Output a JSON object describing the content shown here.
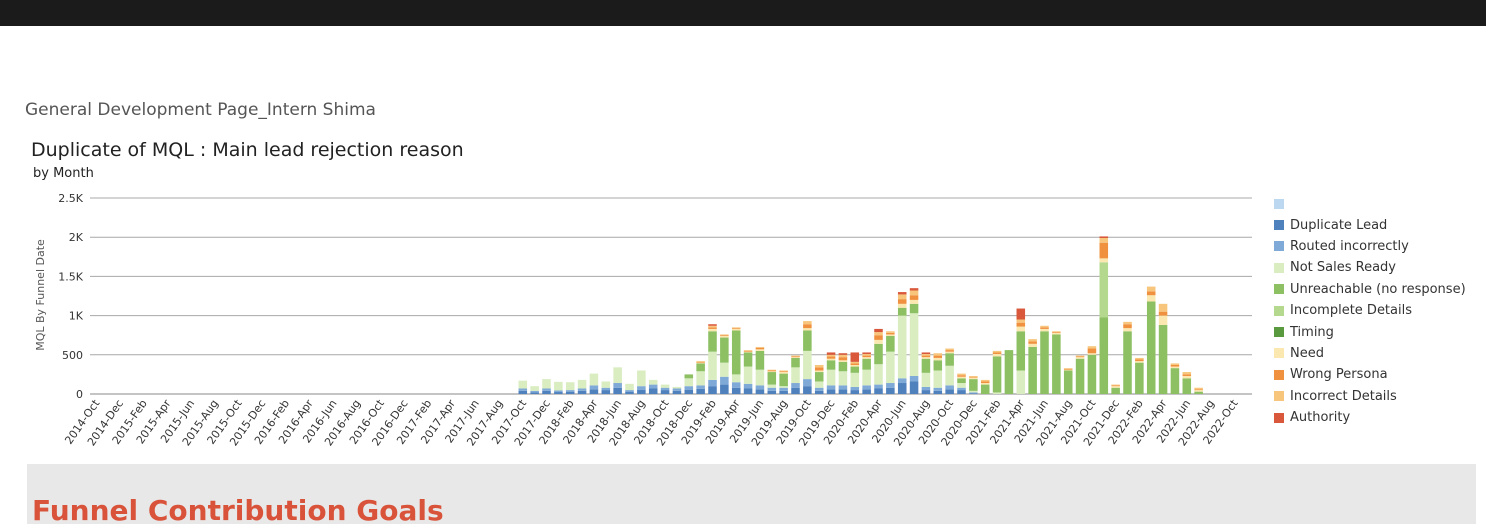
{
  "page": {
    "title": "General Development Page_Intern Shima"
  },
  "bottom": {
    "heading": "Funnel Contribution Goals"
  },
  "chart_data": {
    "type": "bar",
    "stacked": true,
    "title": "Duplicate of MQL : Main lead rejection reason",
    "subtitle": "by Month",
    "ylabel": "MQL By Funnel Date",
    "xlabel": "",
    "ylim": [
      0,
      2500
    ],
    "yticks": [
      0,
      500,
      1000,
      1500,
      2000,
      2500
    ],
    "ytick_labels": [
      "0",
      "500",
      "1K",
      "1.5K",
      "2K",
      "2.5K"
    ],
    "grid": true,
    "legend_position": "right",
    "x_start": "2014-Oct",
    "xtick_labels": [
      "2014-Oct",
      "2014-Dec",
      "2015-Feb",
      "2015-Apr",
      "2015-Jun",
      "2015-Aug",
      "2015-Oct",
      "2015-Dec",
      "2016-Feb",
      "2016-Apr",
      "2016-Jun",
      "2016-Aug",
      "2016-Oct",
      "2016-Dec",
      "2017-Feb",
      "2017-Apr",
      "2017-Jun",
      "2017-Aug",
      "2017-Oct",
      "2017-Dec",
      "2018-Feb",
      "2018-Apr",
      "2018-Jun",
      "2018-Aug",
      "2018-Oct",
      "2018-Dec",
      "2019-Feb",
      "2019-Apr",
      "2019-Jun",
      "2019-Aug",
      "2019-Oct",
      "2019-Dec",
      "2020-Feb",
      "2020-Apr",
      "2020-Jun",
      "2020-Aug",
      "2020-Oct",
      "2020-Dec",
      "2021-Feb",
      "2021-Apr",
      "2021-Jun",
      "2021-Aug",
      "2021-Oct",
      "2021-Dec",
      "2022-Feb",
      "2022-Apr",
      "2022-Jun",
      "2022-Aug",
      "2022-Oct"
    ],
    "categories": [
      "2014-Oct",
      "2014-Nov",
      "2014-Dec",
      "2015-Jan",
      "2015-Feb",
      "2015-Mar",
      "2015-Apr",
      "2015-May",
      "2015-Jun",
      "2015-Jul",
      "2015-Aug",
      "2015-Sep",
      "2015-Oct",
      "2015-Nov",
      "2015-Dec",
      "2016-Jan",
      "2016-Feb",
      "2016-Mar",
      "2016-Apr",
      "2016-May",
      "2016-Jun",
      "2016-Jul",
      "2016-Aug",
      "2016-Sep",
      "2016-Oct",
      "2016-Nov",
      "2016-Dec",
      "2017-Jan",
      "2017-Feb",
      "2017-Mar",
      "2017-Apr",
      "2017-May",
      "2017-Jun",
      "2017-Jul",
      "2017-Aug",
      "2017-Sep",
      "2017-Oct",
      "2017-Nov",
      "2017-Dec",
      "2018-Jan",
      "2018-Feb",
      "2018-Mar",
      "2018-Apr",
      "2018-May",
      "2018-Jun",
      "2018-Jul",
      "2018-Aug",
      "2018-Sep",
      "2018-Oct",
      "2018-Nov",
      "2018-Dec",
      "2019-Jan",
      "2019-Feb",
      "2019-Mar",
      "2019-Apr",
      "2019-May",
      "2019-Jun",
      "2019-Jul",
      "2019-Aug",
      "2019-Sep",
      "2019-Oct",
      "2019-Nov",
      "2019-Dec",
      "2020-Jan",
      "2020-Feb",
      "2020-Mar",
      "2020-Apr",
      "2020-May",
      "2020-Jun",
      "2020-Jul",
      "2020-Aug",
      "2020-Sep",
      "2020-Oct",
      "2020-Nov",
      "2020-Dec",
      "2021-Jan",
      "2021-Feb",
      "2021-Mar",
      "2021-Apr",
      "2021-May",
      "2021-Jun",
      "2021-Jul",
      "2021-Aug",
      "2021-Sep",
      "2021-Oct",
      "2021-Nov",
      "2021-Dec",
      "2022-Jan",
      "2022-Feb",
      "2022-Mar",
      "2022-Apr",
      "2022-May",
      "2022-Jun",
      "2022-Jul",
      "2022-Aug",
      "2022-Sep",
      "2022-Oct",
      "2022-Nov"
    ],
    "series": [
      {
        "name": "",
        "color": "#bcd8f0",
        "values": [
          0,
          0,
          0,
          0,
          0,
          0,
          0,
          0,
          0,
          0,
          0,
          0,
          0,
          0,
          0,
          0,
          0,
          0,
          0,
          0,
          0,
          0,
          0,
          0,
          0,
          0,
          0,
          0,
          0,
          0,
          0,
          0,
          0,
          0,
          0,
          0,
          0,
          0,
          0,
          0,
          0,
          0,
          0,
          0,
          0,
          0,
          0,
          0,
          0,
          0,
          0,
          0,
          0,
          0,
          0,
          0,
          0,
          0,
          0,
          0,
          0,
          0,
          0,
          0,
          0,
          0,
          0,
          0,
          0,
          0,
          0,
          0,
          0,
          0,
          0,
          0,
          0,
          0,
          0,
          0,
          0,
          0,
          0,
          0,
          0,
          0,
          0,
          0,
          0,
          0,
          0,
          0,
          0,
          0,
          0,
          0,
          0,
          0
        ]
      },
      {
        "name": "Duplicate Lead",
        "color": "#4f81bd",
        "values": [
          0,
          0,
          0,
          0,
          0,
          0,
          0,
          0,
          0,
          0,
          0,
          0,
          0,
          0,
          0,
          0,
          0,
          0,
          0,
          0,
          0,
          0,
          0,
          0,
          0,
          0,
          0,
          0,
          0,
          0,
          0,
          0,
          0,
          0,
          0,
          0,
          40,
          20,
          40,
          25,
          30,
          40,
          60,
          50,
          80,
          30,
          55,
          70,
          50,
          40,
          55,
          65,
          100,
          120,
          80,
          70,
          60,
          40,
          40,
          80,
          100,
          40,
          60,
          60,
          50,
          60,
          70,
          80,
          140,
          160,
          50,
          40,
          60,
          50,
          10,
          0,
          0,
          0,
          0,
          0,
          0,
          0,
          0,
          0,
          0,
          0,
          0,
          0,
          0,
          0,
          0,
          0,
          0,
          0,
          0,
          0,
          0,
          0
        ]
      },
      {
        "name": "Routed incorrectly",
        "color": "#7fa9d6",
        "values": [
          0,
          0,
          0,
          0,
          0,
          0,
          0,
          0,
          0,
          0,
          0,
          0,
          0,
          0,
          0,
          0,
          0,
          0,
          0,
          0,
          0,
          0,
          0,
          0,
          0,
          0,
          0,
          0,
          0,
          0,
          0,
          0,
          0,
          0,
          0,
          0,
          30,
          20,
          30,
          20,
          20,
          30,
          50,
          30,
          60,
          20,
          45,
          50,
          30,
          30,
          45,
          45,
          80,
          100,
          70,
          60,
          50,
          40,
          40,
          60,
          90,
          40,
          50,
          50,
          40,
          50,
          50,
          60,
          60,
          70,
          40,
          40,
          50,
          30,
          10,
          0,
          0,
          0,
          0,
          0,
          0,
          0,
          0,
          0,
          0,
          0,
          0,
          0,
          0,
          0,
          0,
          0,
          0,
          0,
          0,
          0,
          0,
          0
        ]
      },
      {
        "name": "Not Sales Ready",
        "color": "#d9edc0",
        "values": [
          0,
          0,
          0,
          0,
          0,
          0,
          0,
          0,
          0,
          0,
          0,
          0,
          0,
          0,
          0,
          0,
          0,
          0,
          0,
          0,
          0,
          0,
          0,
          0,
          0,
          0,
          0,
          0,
          0,
          0,
          0,
          0,
          0,
          0,
          0,
          0,
          100,
          60,
          120,
          110,
          100,
          110,
          150,
          80,
          200,
          80,
          200,
          60,
          40,
          20,
          100,
          180,
          360,
          180,
          100,
          220,
          200,
          40,
          20,
          200,
          360,
          80,
          200,
          180,
          180,
          200,
          260,
          400,
          800,
          800,
          180,
          220,
          250,
          60,
          20,
          0,
          20,
          0,
          300,
          0,
          0,
          0,
          0,
          0,
          0,
          0,
          0,
          0,
          0,
          0,
          0,
          0,
          0,
          0,
          0,
          0,
          0,
          0
        ]
      },
      {
        "name": "Unreachable (no response)",
        "color": "#8cc063",
        "values": [
          0,
          0,
          0,
          0,
          0,
          0,
          0,
          0,
          0,
          0,
          0,
          0,
          0,
          0,
          0,
          0,
          0,
          0,
          0,
          0,
          0,
          0,
          0,
          0,
          0,
          0,
          0,
          0,
          0,
          0,
          0,
          0,
          0,
          0,
          0,
          0,
          0,
          0,
          0,
          0,
          0,
          0,
          0,
          0,
          0,
          0,
          0,
          0,
          0,
          0,
          50,
          100,
          260,
          320,
          560,
          180,
          240,
          160,
          160,
          120,
          260,
          120,
          120,
          120,
          80,
          140,
          260,
          200,
          100,
          120,
          180,
          130,
          160,
          60,
          150,
          120,
          460,
          560,
          500,
          600,
          800,
          760,
          300,
          450,
          500,
          980,
          80,
          800,
          400,
          1180,
          880,
          330,
          200,
          30,
          0,
          0,
          0,
          0
        ]
      },
      {
        "name": "Incomplete Details",
        "color": "#b3d88e",
        "values": [
          0,
          0,
          0,
          0,
          0,
          0,
          0,
          0,
          0,
          0,
          0,
          0,
          0,
          0,
          0,
          0,
          0,
          0,
          0,
          0,
          0,
          0,
          0,
          0,
          0,
          0,
          0,
          0,
          0,
          0,
          0,
          0,
          0,
          0,
          0,
          0,
          0,
          0,
          0,
          0,
          0,
          0,
          0,
          0,
          0,
          0,
          0,
          0,
          0,
          0,
          0,
          0,
          0,
          0,
          0,
          0,
          0,
          0,
          0,
          0,
          0,
          0,
          0,
          0,
          0,
          0,
          0,
          0,
          0,
          0,
          0,
          0,
          0,
          0,
          0,
          0,
          0,
          0,
          0,
          0,
          0,
          0,
          0,
          0,
          0,
          700,
          0,
          0,
          0,
          0,
          0,
          0,
          0,
          0,
          0,
          0,
          0,
          0
        ]
      },
      {
        "name": "Timing",
        "color": "#5a9a3f",
        "values": [
          0,
          0,
          0,
          0,
          0,
          0,
          0,
          0,
          0,
          0,
          0,
          0,
          0,
          0,
          0,
          0,
          0,
          0,
          0,
          0,
          0,
          0,
          0,
          0,
          0,
          0,
          0,
          0,
          0,
          0,
          0,
          0,
          0,
          0,
          0,
          0,
          0,
          0,
          0,
          0,
          0,
          0,
          0,
          0,
          0,
          0,
          0,
          0,
          0,
          0,
          0,
          0,
          0,
          0,
          0,
          0,
          0,
          0,
          0,
          0,
          0,
          0,
          0,
          0,
          0,
          0,
          0,
          0,
          0,
          0,
          0,
          0,
          0,
          0,
          0,
          0,
          0,
          0,
          0,
          0,
          0,
          0,
          0,
          0,
          0,
          0,
          0,
          0,
          0,
          0,
          0,
          0,
          0,
          0,
          0,
          0,
          0,
          0
        ]
      },
      {
        "name": "Need",
        "color": "#fbe8b0",
        "values": [
          0,
          0,
          0,
          0,
          0,
          0,
          0,
          0,
          0,
          0,
          0,
          0,
          0,
          0,
          0,
          0,
          0,
          0,
          0,
          0,
          0,
          0,
          0,
          0,
          0,
          0,
          0,
          0,
          0,
          0,
          0,
          0,
          0,
          0,
          0,
          0,
          0,
          0,
          0,
          0,
          0,
          0,
          0,
          0,
          0,
          0,
          0,
          0,
          0,
          0,
          0,
          10,
          30,
          20,
          20,
          10,
          20,
          10,
          20,
          10,
          30,
          20,
          20,
          20,
          20,
          20,
          50,
          20,
          50,
          50,
          20,
          30,
          20,
          20,
          20,
          20,
          30,
          0,
          60,
          40,
          30,
          20,
          10,
          20,
          20,
          50,
          20,
          40,
          20,
          80,
          120,
          20,
          30,
          20,
          0,
          0,
          0,
          0
        ]
      },
      {
        "name": "Wrong Persona",
        "color": "#f0913f",
        "values": [
          0,
          0,
          0,
          0,
          0,
          0,
          0,
          0,
          0,
          0,
          0,
          0,
          0,
          0,
          0,
          0,
          0,
          0,
          0,
          0,
          0,
          0,
          0,
          0,
          0,
          0,
          0,
          0,
          0,
          0,
          0,
          0,
          0,
          0,
          0,
          0,
          0,
          0,
          0,
          0,
          0,
          0,
          0,
          0,
          0,
          0,
          0,
          0,
          0,
          0,
          0,
          10,
          20,
          10,
          10,
          10,
          20,
          10,
          10,
          10,
          50,
          40,
          30,
          40,
          20,
          20,
          60,
          20,
          60,
          60,
          20,
          30,
          20,
          20,
          10,
          20,
          20,
          0,
          50,
          30,
          20,
          10,
          10,
          10,
          60,
          200,
          10,
          50,
          20,
          50,
          50,
          20,
          20,
          10,
          0,
          0,
          0,
          0
        ]
      },
      {
        "name": "Incorrect Details",
        "color": "#f7c67c",
        "values": [
          0,
          0,
          0,
          0,
          0,
          0,
          0,
          0,
          0,
          0,
          0,
          0,
          0,
          0,
          0,
          0,
          0,
          0,
          0,
          0,
          0,
          0,
          0,
          0,
          0,
          0,
          0,
          0,
          0,
          0,
          0,
          0,
          0,
          0,
          0,
          0,
          0,
          0,
          0,
          0,
          0,
          0,
          0,
          0,
          0,
          0,
          0,
          0,
          0,
          0,
          0,
          10,
          20,
          10,
          10,
          10,
          10,
          10,
          10,
          10,
          40,
          30,
          20,
          30,
          20,
          20,
          40,
          20,
          60,
          60,
          20,
          30,
          20,
          20,
          10,
          20,
          20,
          0,
          40,
          30,
          20,
          10,
          10,
          10,
          30,
          60,
          10,
          30,
          20,
          60,
          100,
          20,
          30,
          20,
          0,
          0,
          0,
          0
        ]
      },
      {
        "name": "Authority",
        "color": "#d9573a",
        "values": [
          0,
          0,
          0,
          0,
          0,
          0,
          0,
          0,
          0,
          0,
          0,
          0,
          0,
          0,
          0,
          0,
          0,
          0,
          0,
          0,
          0,
          0,
          0,
          0,
          0,
          0,
          0,
          0,
          0,
          0,
          0,
          0,
          0,
          0,
          0,
          0,
          0,
          0,
          0,
          0,
          0,
          0,
          0,
          0,
          0,
          0,
          0,
          0,
          0,
          0,
          0,
          0,
          20,
          0,
          0,
          0,
          0,
          0,
          0,
          0,
          0,
          0,
          30,
          20,
          120,
          20,
          40,
          0,
          30,
          30,
          20,
          0,
          0,
          0,
          0,
          0,
          0,
          0,
          140,
          0,
          0,
          0,
          0,
          0,
          0,
          20,
          0,
          0,
          0,
          0,
          0,
          0,
          0,
          0,
          0,
          0,
          0,
          0
        ]
      }
    ]
  }
}
